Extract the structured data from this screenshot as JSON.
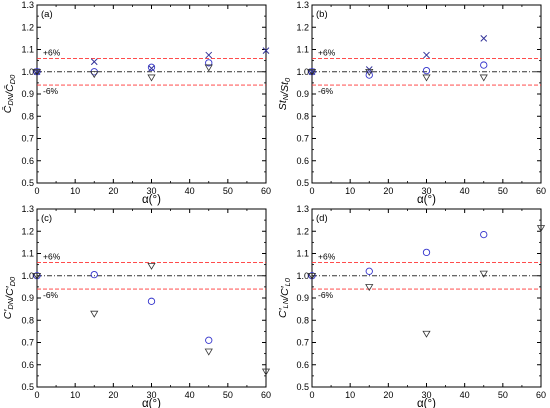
{
  "chart_data": [
    {
      "type": "scatter",
      "panel_label": "(a)",
      "xlabel": "α(°)",
      "ylabel": "C̄DN / C̄D0",
      "xlim": [
        0,
        60
      ],
      "ylim": [
        0.5,
        1.3
      ],
      "xticks": [
        0,
        10,
        20,
        30,
        40,
        50,
        60
      ],
      "yticks": [
        0.5,
        0.6,
        0.7,
        0.8,
        0.9,
        1.0,
        1.1,
        1.2,
        1.3
      ],
      "reference_lines": [
        {
          "label": "+6%",
          "value": 1.06,
          "color": "#ff3333"
        },
        {
          "label": "",
          "value": 1.0,
          "color": "#333333"
        },
        {
          "label": "-6%",
          "value": 0.94,
          "color": "#ff3333"
        }
      ],
      "series": [
        {
          "marker": "circle",
          "color": "#3333cc",
          "x": [
            0,
            15,
            30,
            45
          ],
          "y": [
            1.0,
            1.0,
            1.02,
            1.04
          ]
        },
        {
          "marker": "x",
          "color": "#333399",
          "x": [
            0,
            15,
            30,
            45,
            60
          ],
          "y": [
            1.0,
            1.045,
            1.015,
            1.075,
            1.095
          ]
        },
        {
          "marker": "triangle-down",
          "color": "#333333",
          "x": [
            0,
            15,
            30,
            45
          ],
          "y": [
            1.0,
            0.99,
            0.975,
            1.02
          ]
        }
      ]
    },
    {
      "type": "scatter",
      "panel_label": "(b)",
      "xlabel": "α(°)",
      "ylabel": "StN / St0",
      "xlim": [
        0,
        60
      ],
      "ylim": [
        0.5,
        1.3
      ],
      "xticks": [
        0,
        10,
        20,
        30,
        40,
        50,
        60
      ],
      "yticks": [
        0.5,
        0.6,
        0.7,
        0.8,
        0.9,
        1.0,
        1.1,
        1.2,
        1.3
      ],
      "reference_lines": [
        {
          "label": "+6%",
          "value": 1.06,
          "color": "#ff3333"
        },
        {
          "label": "",
          "value": 1.0,
          "color": "#333333"
        },
        {
          "label": "-6%",
          "value": 0.94,
          "color": "#ff3333"
        }
      ],
      "series": [
        {
          "marker": "circle",
          "color": "#3333cc",
          "x": [
            0,
            15,
            30,
            45
          ],
          "y": [
            1.0,
            0.985,
            1.005,
            1.03
          ]
        },
        {
          "marker": "x",
          "color": "#333399",
          "x": [
            0,
            15,
            30,
            45
          ],
          "y": [
            1.0,
            1.01,
            1.075,
            1.15
          ]
        },
        {
          "marker": "triangle-down",
          "color": "#333333",
          "x": [
            0,
            15,
            30,
            45
          ],
          "y": [
            1.0,
            1.0,
            0.975,
            0.975
          ]
        }
      ]
    },
    {
      "type": "scatter",
      "panel_label": "(c)",
      "xlabel": "α(°)",
      "ylabel": "C′DN / C′D0",
      "xlim": [
        0,
        60
      ],
      "ylim": [
        0.5,
        1.3
      ],
      "xticks": [
        0,
        10,
        20,
        30,
        40,
        50,
        60
      ],
      "yticks": [
        0.5,
        0.6,
        0.7,
        0.8,
        0.9,
        1.0,
        1.1,
        1.2,
        1.3
      ],
      "reference_lines": [
        {
          "label": "+6%",
          "value": 1.06,
          "color": "#ff3333"
        },
        {
          "label": "",
          "value": 1.0,
          "color": "#333333"
        },
        {
          "label": "-6%",
          "value": 0.94,
          "color": "#ff3333"
        }
      ],
      "series": [
        {
          "marker": "circle",
          "color": "#3333cc",
          "x": [
            0,
            15,
            30,
            45
          ],
          "y": [
            1.0,
            1.005,
            0.885,
            0.71
          ]
        },
        {
          "marker": "triangle-down",
          "color": "#333333",
          "x": [
            0,
            15,
            30,
            45,
            60
          ],
          "y": [
            1.0,
            0.83,
            1.045,
            0.66,
            0.57
          ]
        }
      ]
    },
    {
      "type": "scatter",
      "panel_label": "(d)",
      "xlabel": "α(°)",
      "ylabel": "C′LN / C′L0",
      "xlim": [
        0,
        60
      ],
      "ylim": [
        0.5,
        1.3
      ],
      "xticks": [
        0,
        10,
        20,
        30,
        40,
        50,
        60
      ],
      "yticks": [
        0.5,
        0.6,
        0.7,
        0.8,
        0.9,
        1.0,
        1.1,
        1.2,
        1.3
      ],
      "reference_lines": [
        {
          "label": "+6%",
          "value": 1.06,
          "color": "#ff3333"
        },
        {
          "label": "",
          "value": 1.0,
          "color": "#333333"
        },
        {
          "label": "-6%",
          "value": 0.94,
          "color": "#ff3333"
        }
      ],
      "series": [
        {
          "marker": "circle",
          "color": "#3333cc",
          "x": [
            0,
            15,
            30,
            45
          ],
          "y": [
            1.0,
            1.02,
            1.105,
            1.185
          ]
        },
        {
          "marker": "triangle-down",
          "color": "#333333",
          "x": [
            0,
            15,
            30,
            45,
            60
          ],
          "y": [
            1.0,
            0.95,
            0.74,
            1.01,
            1.215
          ]
        }
      ]
    }
  ]
}
